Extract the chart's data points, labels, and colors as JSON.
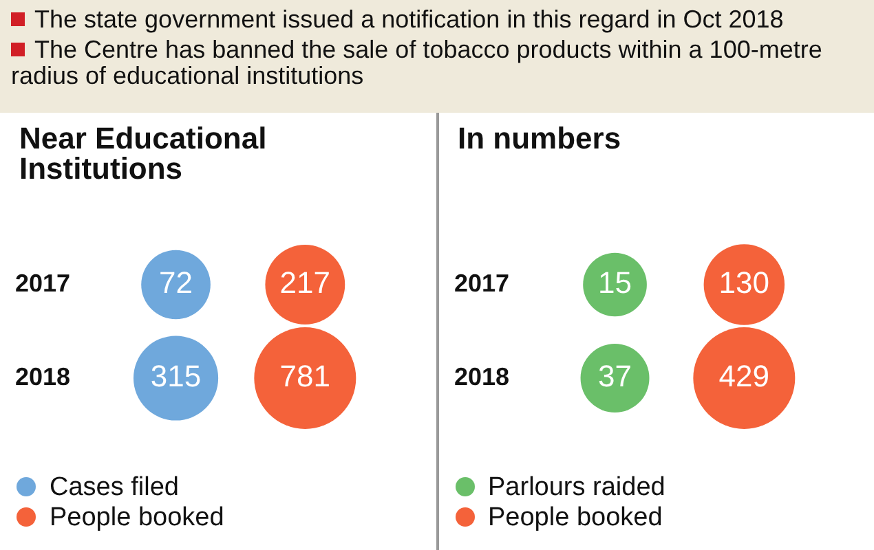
{
  "chart_data": [
    {
      "type": "other",
      "annotations": [
        "The state government issued a notification in this regard in Oct 2018",
        "The Centre has banned the sale of tobacco products within a 100-metre radius of educational institutions"
      ]
    },
    {
      "type": "other",
      "title": "Near Educational Institutions",
      "categories": [
        "2017",
        "2018"
      ],
      "legend": "bottom",
      "data_labels": true,
      "series": [
        {
          "name": "Cases filed",
          "color": "#6fa8dc",
          "values": [
            72,
            315
          ]
        },
        {
          "name": "People booked",
          "color": "#f4623a",
          "values": [
            217,
            781
          ]
        }
      ]
    },
    {
      "type": "other",
      "title": "In numbers",
      "categories": [
        "2017",
        "2018"
      ],
      "legend": "bottom",
      "data_labels": true,
      "series": [
        {
          "name": "Parlours raided",
          "color": "#6abf69",
          "values": [
            15,
            37
          ]
        },
        {
          "name": "People booked",
          "color": "#f4623a",
          "values": [
            130,
            429
          ]
        }
      ]
    }
  ]
}
